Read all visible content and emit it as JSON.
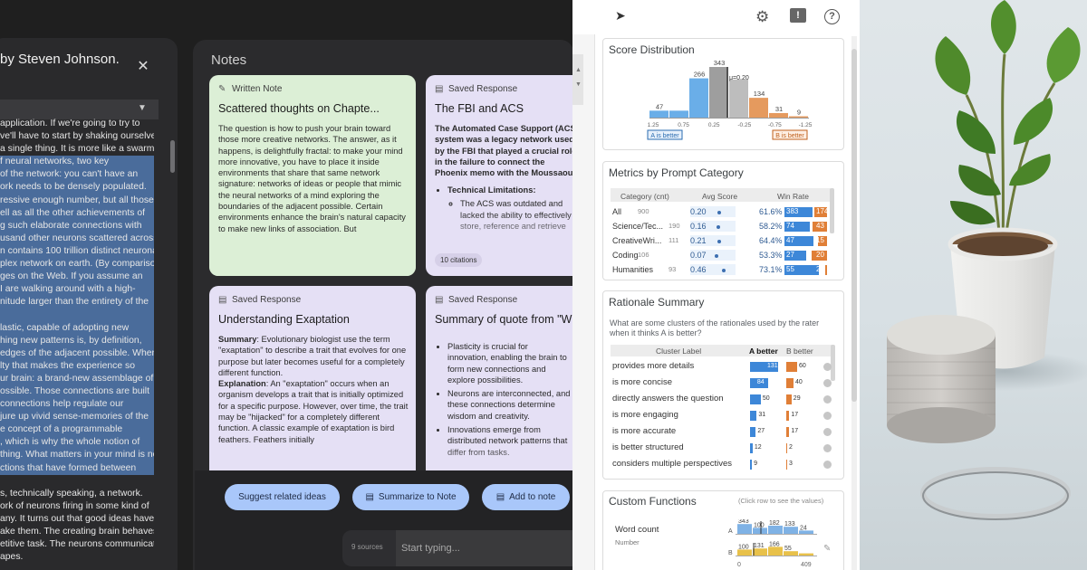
{
  "reader": {
    "title": "by Steven Johnson.",
    "lines": [
      {
        "t": " application. If we're going to try to",
        "hl": false
      },
      {
        "t": "ve'll have to start by shaking ourselves",
        "hl": false
      },
      {
        "t": " a single thing. It is more like a swarm.",
        "hl": false
      },
      {
        "t": "f neural networks, two key",
        "hl": true
      },
      {
        "t": "of the network: you can't have an",
        "hl": true
      },
      {
        "t": "ork needs to be densely populated.",
        "hl": true
      },
      {
        "t": "ressive enough number, but all those",
        "hl": true
      },
      {
        "t": "ell as all the other achievements of",
        "hl": true
      },
      {
        "t": "g such elaborate connections with",
        "hl": true
      },
      {
        "t": "usand other neurons scattered across",
        "hl": true
      },
      {
        "t": "n contains 100 trillion distinct neuronal",
        "hl": true
      },
      {
        "t": "plex network on earth. (By comparison,",
        "hl": true
      },
      {
        "t": "ges on the Web. If you assume an",
        "hl": true
      },
      {
        "t": " I are walking around with a high-",
        "hl": true
      },
      {
        "t": "nitude larger than the entirety of the",
        "hl": true
      },
      {
        "t": "",
        "hl": true
      },
      {
        "t": "lastic, capable of adopting new",
        "hl": true
      },
      {
        "t": "hing new patterns is, by definition,",
        "hl": true
      },
      {
        "t": "edges of the adjacent possible. When",
        "hl": true
      },
      {
        "t": "lty that makes the experience so",
        "hl": true
      },
      {
        "t": "ur brain: a brand-new assemblage of",
        "hl": true
      },
      {
        "t": "ossible. Those connections are built",
        "hl": true
      },
      {
        "t": "connections help regulate our",
        "hl": true
      },
      {
        "t": "jure up vivid sense-memories of the",
        "hl": true
      },
      {
        "t": "e concept of a programmable",
        "hl": true
      },
      {
        "t": ", which is why the whole notion of",
        "hl": true
      },
      {
        "t": "thing. What matters in your mind is not",
        "hl": true
      },
      {
        "t": "ctions that have formed between",
        "hl": true
      },
      {
        "t": "",
        "hl": false
      },
      {
        "t": "s, technically speaking, a network.",
        "hl": false
      },
      {
        "t": "ork of neurons firing in some kind of",
        "hl": false
      },
      {
        "t": "any. It turns out that good ideas have",
        "hl": false
      },
      {
        "t": "ake them. The creating brain behaves",
        "hl": false
      },
      {
        "t": "etitive task. The neurons communicate",
        "hl": false
      },
      {
        "t": "apes.",
        "hl": false
      }
    ]
  },
  "notes": {
    "title": "Notes",
    "cards": [
      {
        "kind": "Written Note",
        "title": "Scattered thoughts on Chapte...",
        "body": "The question is how to push your brain toward those more creative networks. The answer, as it happens, is delightfully fractal: to make your mind more innovative, you have to place it inside environments that share that same network signature: networks of ideas or people that mimic the neural networks of a mind exploring the boundaries of the adjacent possible. Certain environments enhance the brain's natural capacity to make new links of association. But"
      },
      {
        "kind": "Saved Response",
        "title": "The FBI and ACS",
        "intro": "The Automated Case Support (ACS) system was a legacy network used by the FBI that played a crucial role in the failure to connect the Phoenix memo with the Moussaoui investigation.",
        "sub_title": "Technical Limitations:",
        "sub_item": "The ACS was outdated and lacked the ability to effectively store, reference and retrieve",
        "citations": "10 citations"
      },
      {
        "kind": "Saved Response",
        "title": "Understanding Exaptation",
        "p1_label": "Summary",
        "p1": ": Evolutionary biologist use the term \"exaptation\" to describe a trait that evolves for one purpose but later becomes useful for a completely different function.",
        "p2_label": "Explanation",
        "p2": ": An \"exaptation\" occurs when an organism develops a trait that is initially optimized for a specific purpose. However, over time, the trait may be \"hijacked\" for a completely different function. A classic example of exaptation is bird feathers. Feathers initially"
      },
      {
        "kind": "Saved Response",
        "title": "Summary of quote from \"Where",
        "items": [
          "Plasticity is crucial for innovation, enabling the brain to form new connections and explore possibilities.",
          "Neurons are interconnected, and these connections determine wisdom and creativity.",
          "Innovations emerge from distributed network patterns that differ from tasks."
        ]
      }
    ],
    "actions": [
      "Suggest related ideas",
      "Summarize to Note",
      "Add to note"
    ],
    "sources": "9 sources",
    "chat_placeholder": "Start typing..."
  },
  "dashboard": {
    "score_distribution": {
      "title": "Score Distribution",
      "bars": [
        {
          "x": "1.25",
          "v": 47,
          "c": "#6aaee8"
        },
        {
          "x": "",
          "v": 47,
          "c": "#6aaee8"
        },
        {
          "x": "",
          "v": 266,
          "c": "#6aaee8"
        },
        {
          "x": "",
          "v": 343,
          "c": "#9e9e9e"
        },
        {
          "x": "",
          "v": 258,
          "c": "#bdbdbd"
        },
        {
          "x": "",
          "v": 134,
          "c": "#e59a5e"
        },
        {
          "x": "",
          "v": 31,
          "c": "#e59a5e"
        },
        {
          "x": "",
          "v": 9,
          "c": "#e59a5e"
        }
      ],
      "labels_top": [
        "47",
        "",
        "266",
        "343",
        "",
        "134",
        "31",
        "9"
      ],
      "mean_label": "μ=0.20",
      "ticks": [
        "1.25",
        "0.75",
        "0.25",
        "-0.25",
        "-0.75",
        "-1.25"
      ],
      "a_tag": "A is better",
      "b_tag": "B is better"
    },
    "metrics": {
      "title": "Metrics by Prompt Category",
      "headers": [
        "Category (cnt)",
        "Avg Score",
        "Win Rate"
      ],
      "rows": [
        {
          "cat": "All",
          "cnt": "900",
          "avg": "0.20",
          "wr": "61.6%",
          "a": "383",
          "b": "174",
          "af": 0.66,
          "bf": 0.3,
          "avg_v": 0.2
        },
        {
          "cat": "Science/Tec...",
          "cnt": "190",
          "avg": "0.16",
          "wr": "58.2%",
          "a": "74",
          "b": "43",
          "af": 0.6,
          "bf": 0.35,
          "avg_v": 0.16
        },
        {
          "cat": "CreativeWri...",
          "cnt": "111",
          "avg": "0.21",
          "wr": "64.4%",
          "a": "47",
          "b": "15",
          "af": 0.68,
          "bf": 0.22,
          "avg_v": 0.21
        },
        {
          "cat": "Coding",
          "cnt": "106",
          "avg": "0.07",
          "wr": "53.3%",
          "a": "27",
          "b": "20",
          "af": 0.5,
          "bf": 0.37,
          "avg_v": 0.07
        },
        {
          "cat": "Humanities",
          "cnt": "93",
          "avg": "0.46",
          "wr": "73.1%",
          "a": "55",
          "b": "2",
          "af": 0.8,
          "bf": 0.04,
          "avg_v": 0.46
        }
      ]
    },
    "rationale": {
      "title": "Rationale Summary",
      "question": "What are some clusters of the rationales used by the rater when it thinks A is better?",
      "headers": [
        "Cluster Label",
        "A better",
        "B better"
      ],
      "rows": [
        {
          "label": "provides more details",
          "a": 131,
          "b": 60
        },
        {
          "label": "is more concise",
          "a": 84,
          "b": 40
        },
        {
          "label": "directly answers the question",
          "a": 50,
          "b": 29
        },
        {
          "label": "is more engaging",
          "a": 31,
          "b": 17
        },
        {
          "label": "is more accurate",
          "a": 27,
          "b": 17
        },
        {
          "label": "is better structured",
          "a": 12,
          "b": 2
        },
        {
          "label": "considers multiple perspectives",
          "a": 9,
          "b": 3
        }
      ]
    },
    "custom_functions": {
      "title": "Custom Functions",
      "hint": "(Click row to see the values)",
      "fn_name": "Word count",
      "fn_type": "Number",
      "a_label": "A",
      "b_label": "B",
      "a_values": [
        "343",
        "100",
        "182",
        "133",
        "24"
      ],
      "b_values": [
        "100",
        "131",
        "166",
        "55"
      ],
      "a_heights": [
        0.9,
        0.55,
        0.75,
        0.65,
        0.3
      ],
      "b_heights": [
        0.55,
        0.65,
        0.8,
        0.4,
        0.2
      ],
      "bottom_left": "0",
      "bottom_right": "409"
    }
  }
}
